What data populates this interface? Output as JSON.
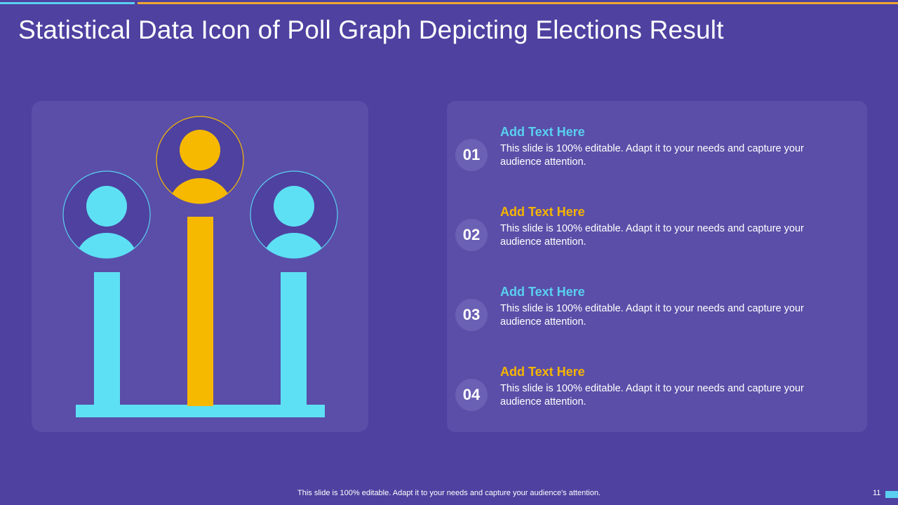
{
  "title": "Statistical Data Icon of Poll Graph Depicting Elections Result",
  "colors": {
    "background": "#4e41a0",
    "panel": "#5a4ea8",
    "cyan": "#5ee0f4",
    "yellow": "#f7b900",
    "number_circle": "#6a60b4"
  },
  "graphic": {
    "icons": [
      "person-icon",
      "person-icon",
      "person-icon"
    ]
  },
  "items": [
    {
      "number": "01",
      "heading": "Add Text Here",
      "heading_color": "#5ad0f0",
      "text": "This slide is 100% editable. Adapt it to your  needs and capture your audience attention."
    },
    {
      "number": "02",
      "heading": "Add Text Here",
      "heading_color": "#f7b500",
      "text": "This slide is 100% editable. Adapt it to your  needs and capture your audience attention."
    },
    {
      "number": "03",
      "heading": "Add Text Here",
      "heading_color": "#5ad0f0",
      "text": "This slide is 100% editable. Adapt it to your  needs and capture your audience attention."
    },
    {
      "number": "04",
      "heading": "Add Text Here",
      "heading_color": "#f7b500",
      "text": "This slide is 100% editable. Adapt it to your  needs and capture your audience attention."
    }
  ],
  "footer": {
    "text": "This slide is 100% editable. Adapt it to your needs and capture your audience's attention.",
    "page_number": "11"
  }
}
